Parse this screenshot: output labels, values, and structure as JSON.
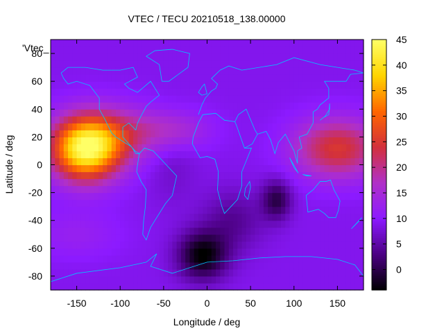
{
  "chart_data": {
    "type": "heatmap",
    "title": "VTEC / TECU 20210518_138.00000",
    "xlabel": "Longitude / deg",
    "ylabel": "Latitude / deg",
    "corner_label": "'Vtec_",
    "xlim": [
      -180,
      180
    ],
    "ylim": [
      -90,
      90
    ],
    "x_ticks": [
      "-150",
      "-100",
      "-50",
      "0",
      "50",
      "100",
      "150"
    ],
    "x_tick_values": [
      -150,
      -100,
      -50,
      0,
      50,
      100,
      150
    ],
    "y_ticks": [
      "80",
      "60",
      "40",
      "20",
      "0",
      "-20",
      "-40",
      "-60",
      "-80"
    ],
    "y_tick_values": [
      80,
      60,
      40,
      20,
      0,
      -20,
      -40,
      -60,
      -80
    ],
    "colorbar": {
      "range": [
        -4,
        45
      ],
      "tick_labels": [
        "45",
        "40",
        "35",
        "30",
        "25",
        "20",
        "15",
        "10",
        "5",
        "0"
      ],
      "tick_values": [
        45,
        40,
        35,
        30,
        25,
        20,
        15,
        10,
        5,
        0
      ],
      "colormap": [
        "#000000",
        "#4b0082",
        "#8c1aff",
        "#b030c8",
        "#d2303c",
        "#ff6600",
        "#ffd400",
        "#ffff66"
      ]
    },
    "field_features": [
      {
        "lon": -140,
        "lat": 12,
        "vtec": 44,
        "sigma_lon": 28,
        "sigma_lat": 16,
        "kind": "peak"
      },
      {
        "lon": -100,
        "lat": 22,
        "vtec": 18,
        "sigma_lon": 30,
        "sigma_lat": 14,
        "kind": "ridge"
      },
      {
        "lon": -40,
        "lat": 25,
        "vtec": 16,
        "sigma_lon": 30,
        "sigma_lat": 10,
        "kind": "ridge"
      },
      {
        "lon": 150,
        "lat": 12,
        "vtec": 25,
        "sigma_lon": 35,
        "sigma_lat": 15,
        "kind": "peak"
      },
      {
        "lon": -150,
        "lat": -50,
        "vtec": 12,
        "sigma_lon": 35,
        "sigma_lat": 12,
        "kind": "band"
      },
      {
        "lon": -5,
        "lat": -65,
        "vtec": -4,
        "sigma_lon": 20,
        "sigma_lat": 12,
        "kind": "trough"
      },
      {
        "lon": 80,
        "lat": -25,
        "vtec": 0,
        "sigma_lon": 12,
        "sigma_lat": 10,
        "kind": "trough"
      },
      {
        "lon": 30,
        "lat": -40,
        "vtec": 4,
        "sigma_lon": 25,
        "sigma_lat": 15,
        "kind": "trough"
      },
      {
        "lon": -40,
        "lat": 0,
        "vtec": 7,
        "sigma_lon": 20,
        "sigma_lat": 20,
        "kind": "trough"
      },
      {
        "lon": -180,
        "lat": 0,
        "vtec": 9,
        "kind": "background"
      }
    ],
    "grid": false,
    "coastlines": true,
    "coastline_color": "#00c8ff"
  }
}
